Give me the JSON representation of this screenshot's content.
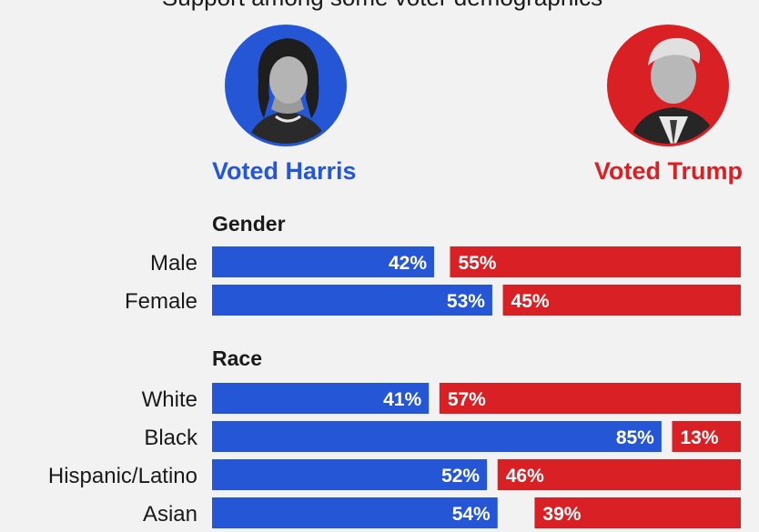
{
  "header_text": "Support among some voter demographics",
  "candidates": {
    "harris": {
      "label": "Voted Harris",
      "color": "#2456d6"
    },
    "trump": {
      "label": "Voted Trump",
      "color": "#d92024"
    }
  },
  "chart_data": {
    "type": "bar",
    "orientation": "horizontal",
    "stacked": true,
    "total": 100,
    "series": [
      {
        "name": "Voted Harris",
        "color": "#2456d6"
      },
      {
        "name": "Voted Trump",
        "color": "#d92024"
      }
    ],
    "groups": [
      {
        "title": "Gender",
        "rows": [
          {
            "label": "Male",
            "harris": 42,
            "trump": 55,
            "harris_label": "42%",
            "trump_label": "55%"
          },
          {
            "label": "Female",
            "harris": 53,
            "trump": 45,
            "harris_label": "53%",
            "trump_label": "45%"
          }
        ]
      },
      {
        "title": "Race",
        "rows": [
          {
            "label": "White",
            "harris": 41,
            "trump": 57,
            "harris_label": "41%",
            "trump_label": "57%"
          },
          {
            "label": "Black",
            "harris": 85,
            "trump": 13,
            "harris_label": "85%",
            "trump_label": "13%"
          },
          {
            "label": "Hispanic/Latino",
            "harris": 52,
            "trump": 46,
            "harris_label": "52%",
            "trump_label": "46%"
          },
          {
            "label": "Asian",
            "harris": 54,
            "trump": 39,
            "harris_label": "54%",
            "trump_label": "39%"
          }
        ]
      }
    ]
  }
}
